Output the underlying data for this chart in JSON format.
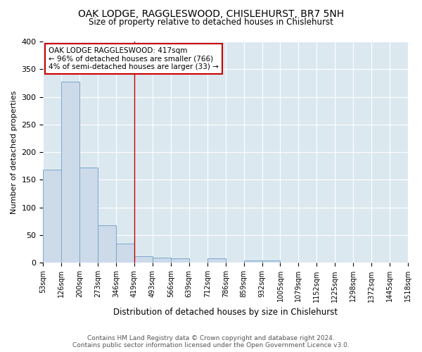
{
  "title": "OAK LODGE, RAGGLESWOOD, CHISLEHURST, BR7 5NH",
  "subtitle": "Size of property relative to detached houses in Chislehurst",
  "xlabel": "Distribution of detached houses by size in Chislehurst",
  "ylabel": "Number of detached properties",
  "bar_values": [
    168,
    328,
    172,
    68,
    35,
    12,
    9,
    8,
    0,
    8,
    0,
    4,
    4,
    0,
    0,
    0,
    0,
    0,
    0,
    0
  ],
  "bar_labels": [
    "53sqm",
    "126sqm",
    "200sqm",
    "273sqm",
    "346sqm",
    "419sqm",
    "493sqm",
    "566sqm",
    "639sqm",
    "712sqm",
    "786sqm",
    "859sqm",
    "932sqm",
    "1005sqm",
    "1079sqm",
    "1152sqm",
    "1225sqm",
    "1298sqm",
    "1372sqm",
    "1445sqm",
    "1518sqm"
  ],
  "bar_color": "#ccdaea",
  "bar_edge_color": "#7aaac8",
  "figure_bg": "#ffffff",
  "axes_bg": "#dce8f0",
  "grid_color": "#ffffff",
  "vline_color": "#cc0000",
  "annotation_text": "OAK LODGE RAGGLESWOOD: 417sqm\n← 96% of detached houses are smaller (766)\n4% of semi-detached houses are larger (33) →",
  "vline_x": 5,
  "ylim": [
    0,
    400
  ],
  "yticks": [
    0,
    50,
    100,
    150,
    200,
    250,
    300,
    350,
    400
  ],
  "footer": "Contains HM Land Registry data © Crown copyright and database right 2024.\nContains public sector information licensed under the Open Government Licence v3.0."
}
